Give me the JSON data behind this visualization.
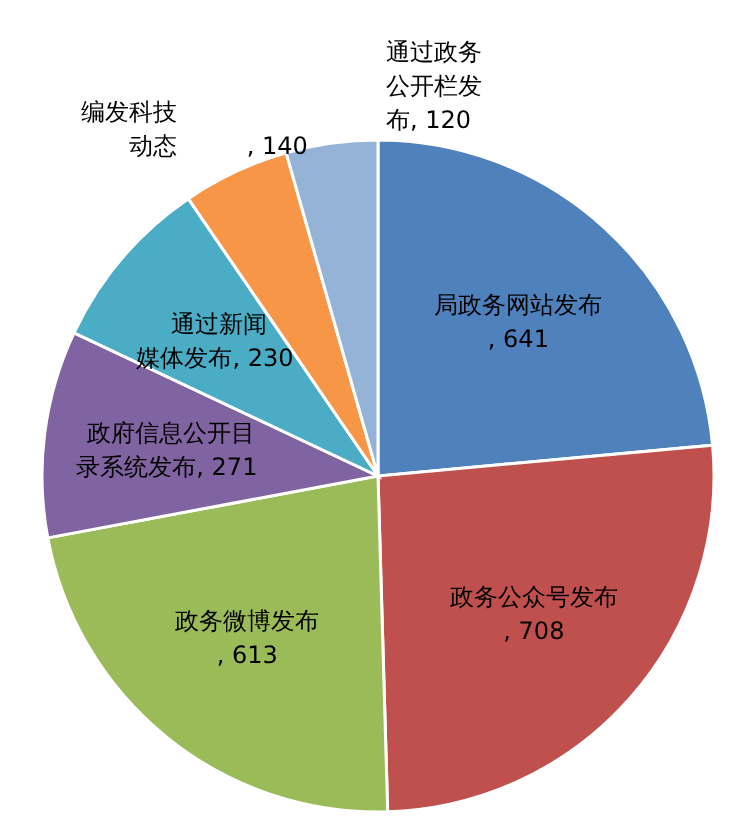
{
  "chart_data": {
    "type": "pie",
    "categories": [
      "局政务网站发布",
      "政务公众号发布",
      "政务微博发布",
      "政府信息公开目录系统发布",
      "通过新闻媒体发布",
      "编发科技动态",
      "通过政务公开栏发布"
    ],
    "values": [
      641,
      708,
      613,
      271,
      230,
      140,
      120
    ],
    "colors": [
      "#4f81bd",
      "#c0504d",
      "#9bbb59",
      "#8064a2",
      "#4bacc6",
      "#f79646",
      "#95b3d7"
    ],
    "value_labels": [
      ", 641",
      ", 708",
      ", 613",
      ", 271",
      ", 230",
      ", 140",
      ", 120"
    ],
    "legend": false
  }
}
